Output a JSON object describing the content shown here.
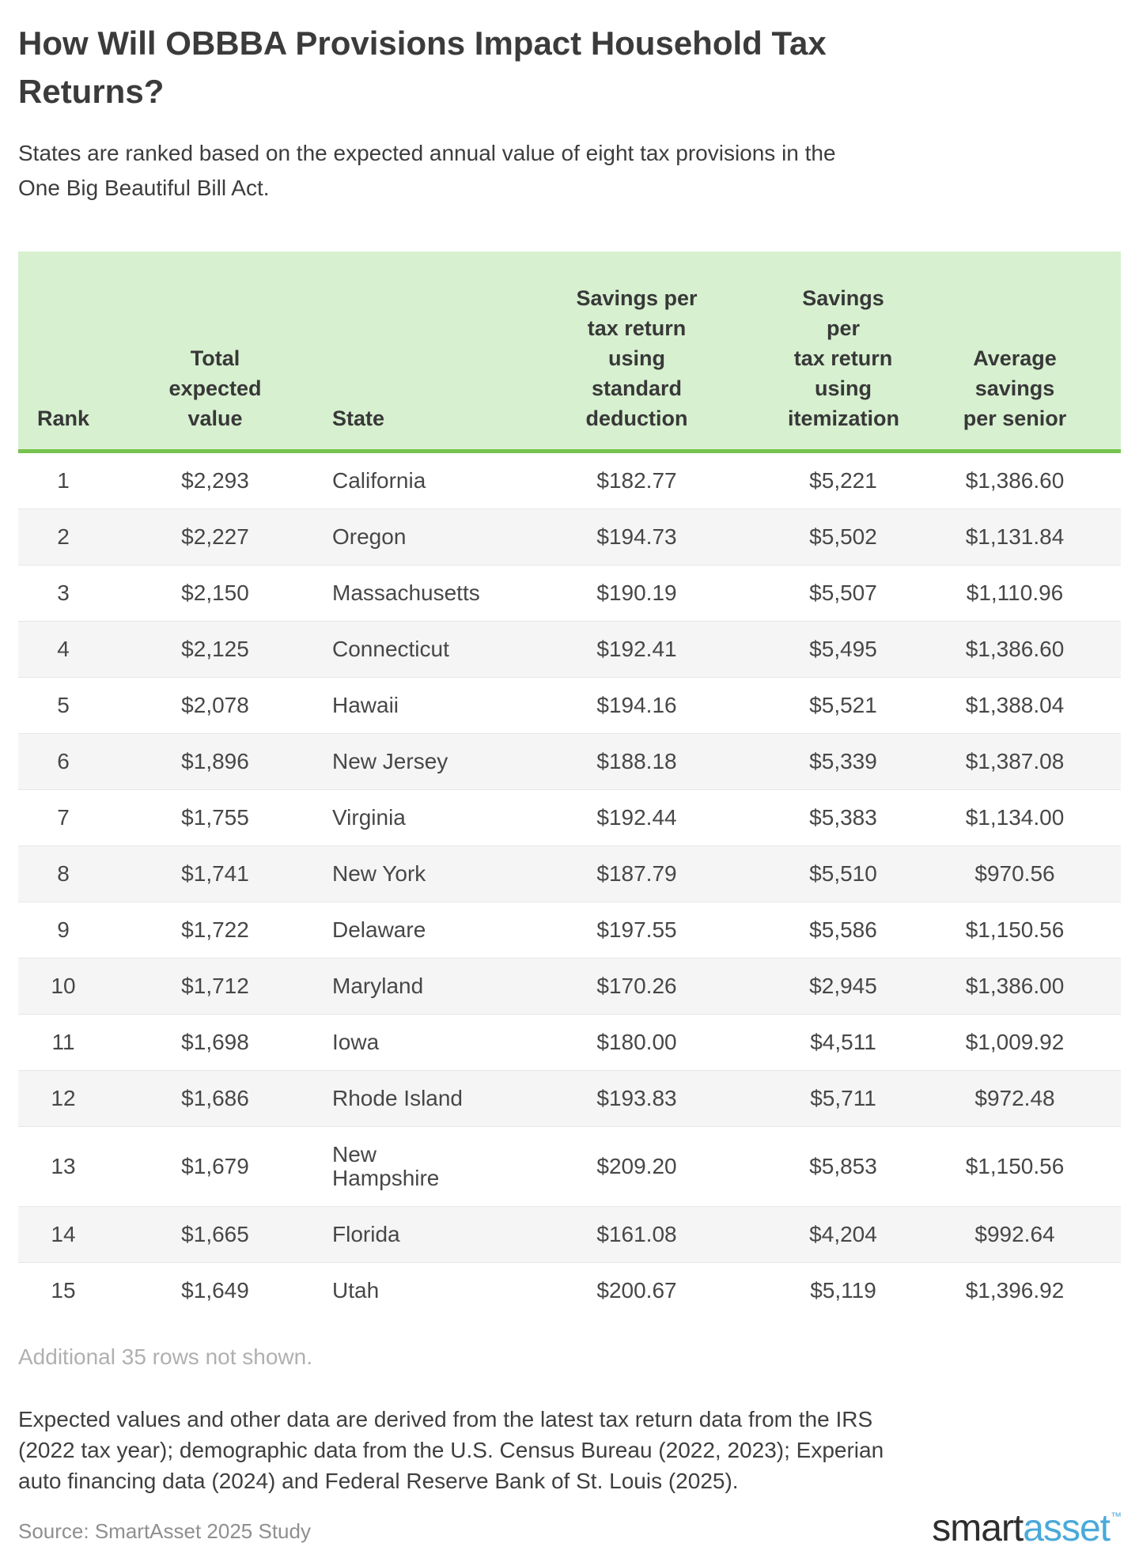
{
  "header": {
    "title": "How Will OBBBA Provisions Impact Household Tax Returns?",
    "subtitle": "States are ranked based on the expected annual value of eight tax provisions in the One Big Beautiful Bill Act."
  },
  "table": {
    "headers_display": [
      "Rank",
      "Total\nexpected\nvalue",
      "State",
      "Savings per\ntax return\nusing\nstandard\ndeduction",
      "Savings per\ntax return\nusing\nitemization",
      "Average\nsavings\nper senior"
    ]
  },
  "chart_data": {
    "type": "table",
    "title": "How Will OBBBA Provisions Impact Household Tax Returns?",
    "subtitle": "States are ranked based on the expected annual value of eight tax provisions in the One Big Beautiful Bill Act.",
    "columns": [
      "Rank",
      "Total expected value",
      "State",
      "Savings per tax return using standard deduction",
      "Savings per tax return using itemization",
      "Average savings per senior"
    ],
    "rows": [
      [
        "1",
        "$2,293",
        "California",
        "$182.77",
        "$5,221",
        "$1,386.60"
      ],
      [
        "2",
        "$2,227",
        "Oregon",
        "$194.73",
        "$5,502",
        "$1,131.84"
      ],
      [
        "3",
        "$2,150",
        "Massachusetts",
        "$190.19",
        "$5,507",
        "$1,110.96"
      ],
      [
        "4",
        "$2,125",
        "Connecticut",
        "$192.41",
        "$5,495",
        "$1,386.60"
      ],
      [
        "5",
        "$2,078",
        "Hawaii",
        "$194.16",
        "$5,521",
        "$1,388.04"
      ],
      [
        "6",
        "$1,896",
        "New Jersey",
        "$188.18",
        "$5,339",
        "$1,387.08"
      ],
      [
        "7",
        "$1,755",
        "Virginia",
        "$192.44",
        "$5,383",
        "$1,134.00"
      ],
      [
        "8",
        "$1,741",
        "New York",
        "$187.79",
        "$5,510",
        "$970.56"
      ],
      [
        "9",
        "$1,722",
        "Delaware",
        "$197.55",
        "$5,586",
        "$1,150.56"
      ],
      [
        "10",
        "$1,712",
        "Maryland",
        "$170.26",
        "$2,945",
        "$1,386.00"
      ],
      [
        "11",
        "$1,698",
        "Iowa",
        "$180.00",
        "$4,511",
        "$1,009.92"
      ],
      [
        "12",
        "$1,686",
        "Rhode Island",
        "$193.83",
        "$5,711",
        "$972.48"
      ],
      [
        "13",
        "$1,679",
        "New Hampshire",
        "$209.20",
        "$5,853",
        "$1,150.56"
      ],
      [
        "14",
        "$1,665",
        "Florida",
        "$161.08",
        "$4,204",
        "$992.64"
      ],
      [
        "15",
        "$1,649",
        "Utah",
        "$200.67",
        "$5,119",
        "$1,396.92"
      ]
    ],
    "note": "Additional 35 rows not shown.",
    "layout_hints": {
      "header_background": "#d7f0d0",
      "header_border": "#76c24e",
      "alternating_row_background": "#f5f5f6",
      "grid": "horizontal row separators only"
    }
  },
  "footer": {
    "rows_note": "Additional 35 rows not shown.",
    "methodology": "Expected values and other data are derived from the latest tax return data from the IRS (2022 tax year); demographic data from the U.S. Census Bureau (2022, 2023); Experian auto financing data (2024) and Federal Reserve Bank of St. Louis (2025).",
    "source": "Source: SmartAsset 2025 Study",
    "logo": {
      "part1": "smart",
      "part2": "asset",
      "tm": "™"
    }
  },
  "colors": {
    "table_header_bg": "#d7f0d0",
    "table_header_border_green": "#76c24e",
    "alt_row_bg": "#f5f5f6",
    "row_separator": "#e7e7e7",
    "text_dark": "#3b3b3b",
    "muted_note": "#b0b0b0",
    "source_gray": "#8f8f8f",
    "logo_dark": "#2e2e2e",
    "logo_blue": "#4aa9da"
  }
}
